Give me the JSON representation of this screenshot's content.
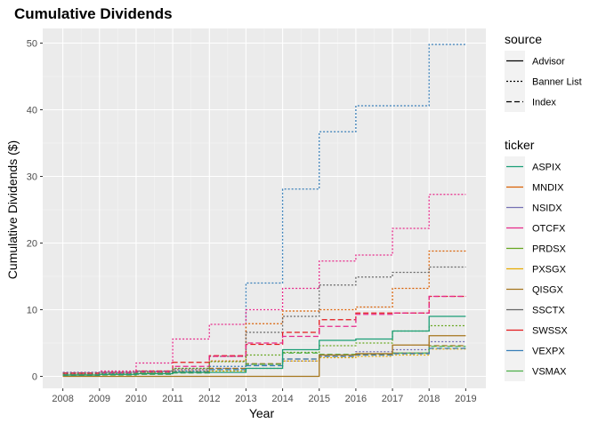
{
  "chart_data": {
    "type": "line",
    "step": "horizontal-step",
    "title": "Cumulative Dividends",
    "xlabel": "Year",
    "ylabel": "Cumulative Dividends ($)",
    "xlim": [
      2008,
      2019
    ],
    "ylim": [
      -1.8,
      52.2
    ],
    "xticks": [
      2008,
      2009,
      2010,
      2011,
      2012,
      2013,
      2014,
      2015,
      2016,
      2017,
      2018,
      2019
    ],
    "yticks": [
      0,
      10,
      20,
      30,
      40,
      50
    ],
    "grid": true,
    "legend_position": "right",
    "legends": [
      {
        "title": "source",
        "entries": [
          {
            "label": "Advisor",
            "linestyle": "solid"
          },
          {
            "label": "Banner List",
            "linestyle": "dotted"
          },
          {
            "label": "Index",
            "linestyle": "dashed"
          }
        ]
      },
      {
        "title": "ticker",
        "entries": [
          {
            "label": "ASPIX",
            "color": "#1b9e77"
          },
          {
            "label": "MNDIX",
            "color": "#d95f02"
          },
          {
            "label": "NSIDX",
            "color": "#7570b3"
          },
          {
            "label": "OTCFX",
            "color": "#e7298a"
          },
          {
            "label": "PRDSX",
            "color": "#66a61e"
          },
          {
            "label": "PXSGX",
            "color": "#e6ab02"
          },
          {
            "label": "QISGX",
            "color": "#a6761d"
          },
          {
            "label": "SSCTX",
            "color": "#666666"
          },
          {
            "label": "SWSSX",
            "color": "#e41a1c"
          },
          {
            "label": "VEXPX",
            "color": "#377eb8"
          },
          {
            "label": "VSMAX",
            "color": "#4daf4a"
          }
        ]
      }
    ],
    "x": [
      2008,
      2009,
      2010,
      2011,
      2012,
      2013,
      2014,
      2015,
      2016,
      2017,
      2018,
      2019
    ],
    "series": [
      {
        "ticker": "VEXPX",
        "source": "Banner List",
        "color": "#377eb8",
        "linestyle": "dotted",
        "values": [
          0.5,
          0.6,
          0.7,
          0.8,
          1.5,
          14.0,
          28.1,
          36.7,
          40.6,
          40.6,
          49.8,
          49.8
        ]
      },
      {
        "ticker": "OTCFX",
        "source": "Banner List",
        "color": "#e7298a",
        "linestyle": "dotted",
        "values": [
          0.6,
          0.8,
          2.0,
          5.6,
          7.8,
          10.0,
          13.2,
          17.3,
          18.2,
          22.2,
          27.3,
          27.3
        ]
      },
      {
        "ticker": "MNDIX",
        "source": "Banner List",
        "color": "#d95f02",
        "linestyle": "dotted",
        "values": [
          0.5,
          0.6,
          0.7,
          1.0,
          2.3,
          7.9,
          9.8,
          10.0,
          10.4,
          13.2,
          18.8,
          18.8
        ]
      },
      {
        "ticker": "SSCTX",
        "source": "Banner List",
        "color": "#666666",
        "linestyle": "dotted",
        "values": [
          0.4,
          0.6,
          0.8,
          1.2,
          3.0,
          6.6,
          9.0,
          13.7,
          14.9,
          15.6,
          16.4,
          16.4
        ]
      },
      {
        "ticker": "SWSSX",
        "source": "Index",
        "color": "#e41a1c",
        "linestyle": "dashed",
        "values": [
          0.5,
          0.6,
          0.8,
          2.1,
          3.1,
          4.8,
          6.6,
          8.5,
          9.5,
          9.5,
          12.0,
          12.0
        ]
      },
      {
        "ticker": "OTCFX",
        "source": "Index",
        "color": "#e7298a",
        "linestyle": "dashed",
        "values": [
          0.3,
          0.5,
          0.7,
          1.5,
          3.0,
          5.0,
          6.0,
          7.5,
          9.3,
          9.5,
          12.0,
          12.0
        ]
      },
      {
        "ticker": "PRDSX",
        "source": "Banner List",
        "color": "#66a61e",
        "linestyle": "dotted",
        "values": [
          0.3,
          0.4,
          0.5,
          1.2,
          2.2,
          3.2,
          3.6,
          4.6,
          5.0,
          6.8,
          7.6,
          7.6
        ]
      },
      {
        "ticker": "NSIDX",
        "source": "Banner List",
        "color": "#7570b3",
        "linestyle": "dotted",
        "values": [
          0.6,
          0.6,
          0.7,
          1.0,
          1.2,
          1.8,
          2.3,
          3.2,
          3.7,
          4.0,
          5.2,
          5.2
        ]
      },
      {
        "ticker": "PXSGX",
        "source": "Banner List",
        "color": "#e6ab02",
        "linestyle": "dotted",
        "values": [
          0.2,
          0.3,
          0.4,
          0.6,
          0.8,
          1.2,
          2.3,
          2.8,
          3.0,
          3.2,
          4.1,
          4.1
        ]
      },
      {
        "ticker": "QISGX",
        "source": "Index",
        "color": "#a6761d",
        "linestyle": "dashed",
        "values": [
          0.2,
          0.3,
          0.5,
          0.7,
          1.2,
          1.9,
          2.6,
          3.0,
          3.3,
          3.5,
          4.6,
          4.6
        ]
      },
      {
        "ticker": "VSMAX",
        "source": "Index",
        "color": "#4daf4a",
        "linestyle": "dashed",
        "values": [
          0.1,
          0.2,
          0.3,
          0.5,
          1.0,
          1.8,
          3.5,
          3.3,
          3.4,
          3.5,
          4.5,
          4.5
        ]
      },
      {
        "ticker": "VEXPX",
        "source": "Index",
        "color": "#377eb8",
        "linestyle": "dashed",
        "values": [
          0.2,
          0.3,
          0.4,
          0.6,
          1.0,
          1.6,
          2.6,
          3.0,
          3.2,
          3.4,
          4.2,
          4.2
        ]
      },
      {
        "ticker": "QISGX",
        "source": "Advisor",
        "color": "#a6761d",
        "linestyle": "solid",
        "values": [
          0,
          0,
          0,
          0,
          0,
          0,
          0,
          3.2,
          3.4,
          4.7,
          6.1,
          6.1
        ]
      },
      {
        "ticker": "ASPIX",
        "source": "Advisor",
        "color": "#1b9e77",
        "linestyle": "solid",
        "values": [
          0.2,
          0.3,
          0.4,
          0.6,
          0.6,
          1.2,
          4.0,
          5.4,
          5.6,
          6.8,
          9.0,
          9.0
        ]
      }
    ]
  }
}
